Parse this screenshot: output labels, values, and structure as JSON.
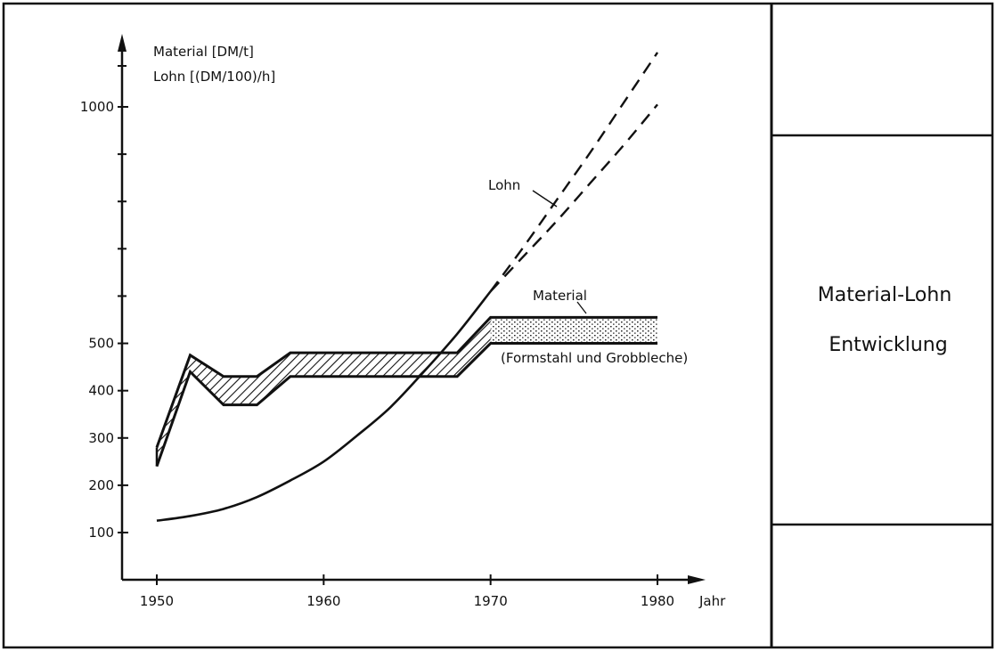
{
  "panel": {
    "title_line1": "Material-Lohn",
    "title_line2": "Entwicklung"
  },
  "chart_data": {
    "type": "line",
    "ylabel_line1": "Material [DM/t]",
    "ylabel_line2": "Lohn [(DM/100)/h]",
    "xlabel": "Jahr",
    "xlim": [
      1950,
      1980
    ],
    "ylim": [
      0,
      1050
    ],
    "x_ticks": [
      1950,
      1960,
      1970,
      1980
    ],
    "y_ticks": [
      100,
      200,
      300,
      400,
      500,
      1000
    ],
    "y_tick_labels": [
      "100",
      "200",
      "300",
      "400",
      "500",
      "1000"
    ],
    "grid": false,
    "series": [
      {
        "name": "Lohn",
        "x": [
          1950,
          1952,
          1954,
          1956,
          1958,
          1960,
          1962,
          1964,
          1966,
          1968,
          1970
        ],
        "y": [
          125,
          135,
          150,
          175,
          210,
          250,
          305,
          365,
          440,
          520,
          610
        ],
        "projection": {
          "x": [
            1970,
            1972,
            1974,
            1976,
            1978,
            1980
          ],
          "y_upper": [
            610,
            705,
            805,
            905,
            1010,
            1115
          ],
          "y_lower": [
            610,
            685,
            760,
            840,
            920,
            1005
          ]
        }
      },
      {
        "name": "Material",
        "x": [
          1950,
          1952,
          1954,
          1956,
          1958,
          1968,
          1970,
          1980
        ],
        "y_upper": [
          280,
          475,
          430,
          430,
          480,
          480,
          555,
          555
        ],
        "y_lower": [
          240,
          440,
          370,
          370,
          430,
          430,
          500,
          500
        ]
      }
    ],
    "annotations": [
      "Lohn",
      "Material",
      "(Formstahl und Grobbleche)"
    ]
  }
}
